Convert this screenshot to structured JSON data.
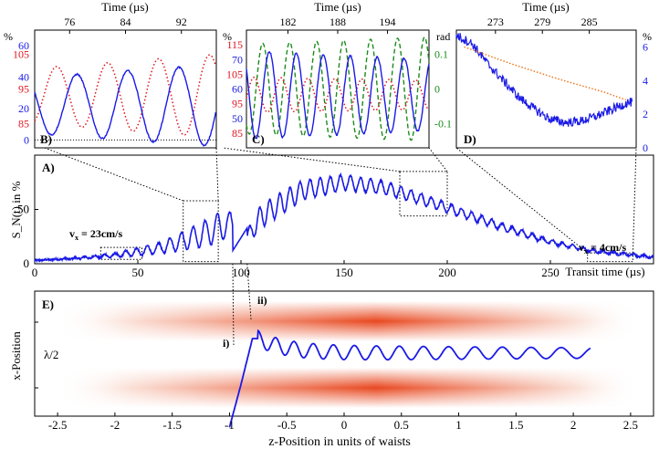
{
  "colors": {
    "signal": "#1a1ae6",
    "ref_red": "#e0141e",
    "ref_green": "#1a8c1a",
    "ref_orange": "#f07820",
    "axis": "#000000"
  },
  "chart_data": [
    {
      "id": "A",
      "type": "line",
      "label": "A)",
      "xlabel": "Transit time (µs)",
      "ylabel": "S_N(t) in %",
      "xlim": [
        0,
        300
      ],
      "ylim": [
        0,
        100
      ],
      "xticks": [
        "0",
        "50",
        "100",
        "150",
        "200",
        "250"
      ],
      "yticks": [
        "0",
        "50"
      ],
      "annotations": [
        {
          "text": "v",
          "sub": "x",
          "rest": " = 23cm/s"
        },
        {
          "text": "v",
          "sub": "x",
          "rest": " = 4cm/s"
        }
      ],
      "series": [
        {
          "color": "blue",
          "envelope": [
            [
              0,
              3
            ],
            [
              20,
              5
            ],
            [
              40,
              8
            ],
            [
              60,
              14
            ],
            [
              80,
              26
            ],
            [
              90,
              34
            ],
            [
              95,
              38
            ],
            [
              100,
              15
            ],
            [
              110,
              44
            ],
            [
              130,
              68
            ],
            [
              150,
              75
            ],
            [
              170,
              70
            ],
            [
              190,
              58
            ],
            [
              210,
              45
            ],
            [
              230,
              32
            ],
            [
              250,
              20
            ],
            [
              270,
              12
            ],
            [
              290,
              8
            ],
            [
              300,
              6
            ]
          ],
          "oscillation": [
            [
              0,
              0
            ],
            [
              20,
              1.5
            ],
            [
              40,
              4
            ],
            [
              60,
              10
            ],
            [
              80,
              22
            ],
            [
              90,
              28
            ],
            [
              100,
              10
            ],
            [
              110,
              22
            ],
            [
              130,
              18
            ],
            [
              150,
              14
            ],
            [
              170,
              12
            ],
            [
              190,
              10
            ],
            [
              210,
              8
            ],
            [
              230,
              6
            ],
            [
              250,
              4
            ],
            [
              270,
              3
            ],
            [
              300,
              2
            ]
          ]
        }
      ]
    },
    {
      "id": "B",
      "type": "line",
      "label": "B)",
      "xlabel": "Time (µs)",
      "xticks": [
        "76",
        "84",
        "92"
      ],
      "xlim": [
        71,
        97
      ],
      "left_unit": "%",
      "yticks_blue": [
        "60",
        "40",
        "20",
        "0"
      ],
      "yticks_red": [
        "105",
        "95",
        "85"
      ],
      "series": [
        {
          "color": "blue",
          "ylim": [
            -5,
            70
          ],
          "period": 7.3,
          "phase": 75.2,
          "offset": 22,
          "amp_start": 18,
          "amp_end": 26
        },
        {
          "color": "red",
          "style": "dotted",
          "ylim": [
            78,
            112
          ],
          "period": 7.3,
          "phase": 72.3,
          "offset": 93,
          "amp_start": 8,
          "amp_end": 12
        }
      ]
    },
    {
      "id": "C",
      "type": "line",
      "label": "C)",
      "xlabel": "Time (µs)",
      "xticks": [
        "182",
        "188",
        "194"
      ],
      "xlim": [
        177,
        199
      ],
      "left_unit": "%",
      "right_unit": "rad",
      "yticks_blue": [
        "70",
        "60",
        "50"
      ],
      "yticks_red": [
        "115",
        "105",
        "95",
        "85"
      ],
      "yticks_green": [
        "0.1",
        "0",
        "-0.1"
      ],
      "series": [
        {
          "color": "blue",
          "ylim": [
            40,
            80
          ],
          "period": 3.25,
          "phase": 182.2,
          "offset": 58,
          "amp_start": 15,
          "amp_end": 12
        },
        {
          "color": "red",
          "style": "dotted",
          "ylim": [
            80,
            120
          ],
          "period": 3.25,
          "phase": 183.6,
          "offset": 98,
          "amp_start": 6,
          "amp_end": 5
        },
        {
          "color": "green",
          "style": "dashed",
          "ylim": [
            -0.17,
            0.17
          ],
          "period": 3.25,
          "phase": 181.4,
          "offset": 0,
          "amp_start": 0.13,
          "amp_end": 0.15
        }
      ]
    },
    {
      "id": "D",
      "type": "line",
      "label": "D)",
      "xlabel": "Time (µs)",
      "xticks": [
        "273",
        "279",
        "285"
      ],
      "xlim": [
        268,
        291
      ],
      "left_unit": "%",
      "yticks_right": [
        "6",
        "4",
        "2",
        "0"
      ],
      "series": [
        {
          "color": "blue",
          "ylim": [
            0,
            7
          ],
          "points": [
            [
              268,
              6.7
            ],
            [
              270,
              6.2
            ],
            [
              272,
              5.0
            ],
            [
              274,
              4.0
            ],
            [
              276,
              3.0
            ],
            [
              278,
              2.3
            ],
            [
              280,
              1.7
            ],
            [
              282,
              1.5
            ],
            [
              284,
              1.6
            ],
            [
              286,
              1.9
            ],
            [
              288,
              2.3
            ],
            [
              290,
              2.7
            ]
          ]
        },
        {
          "color": "orange",
          "style": "dotted",
          "ylim": [
            0,
            7
          ],
          "points": [
            [
              269,
              6.0
            ],
            [
              275,
              5.0
            ],
            [
              281,
              4.1
            ],
            [
              287,
              3.3
            ],
            [
              290,
              2.8
            ]
          ]
        }
      ]
    },
    {
      "id": "E",
      "type": "line",
      "label": "E)",
      "xlabel": "z-Position in units of waists",
      "ylabel": "x-Position",
      "xlim": [
        -2.7,
        2.7
      ],
      "xticks": [
        "-2.5",
        "-2",
        "-1.5",
        "-1",
        "-0.5",
        "0",
        "0.5",
        "1",
        "1.5",
        "2",
        "2.5"
      ],
      "annotations": [
        "λ/2",
        "i)",
        "ii)"
      ],
      "series": [
        {
          "color": "blue",
          "rise": [
            [
              -1.0,
              -0.6
            ],
            [
              -0.9,
              0.05
            ],
            [
              -0.8,
              0.75
            ]
          ],
          "osc_start": -0.75,
          "osc_end": 2.15,
          "center": 0.5,
          "amp_start": 0.12,
          "amp_end": 0.08,
          "period_start": 0.15,
          "period_end": 0.28
        }
      ]
    }
  ],
  "inset_links": {
    "note": ""
  }
}
